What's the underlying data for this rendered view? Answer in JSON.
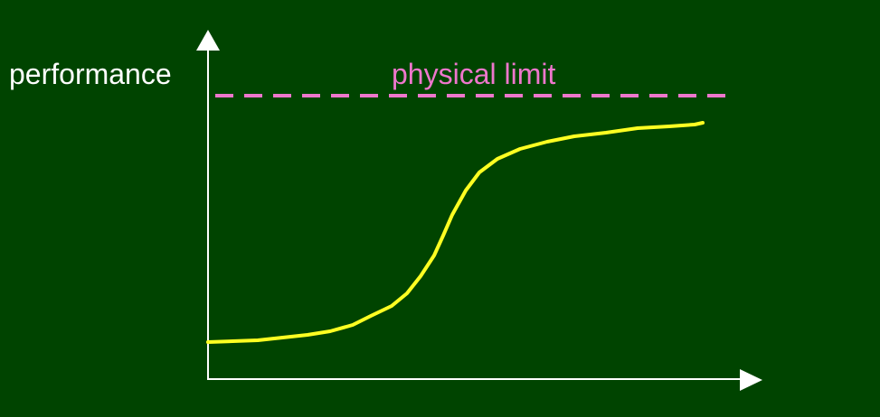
{
  "diagram": {
    "y_axis_label": "performance",
    "limit_label": "physical limit",
    "colors": {
      "background": "#004400",
      "axes": "#ffffff",
      "limit_line": "#ee77cc",
      "curve": "#ffff22"
    }
  }
}
